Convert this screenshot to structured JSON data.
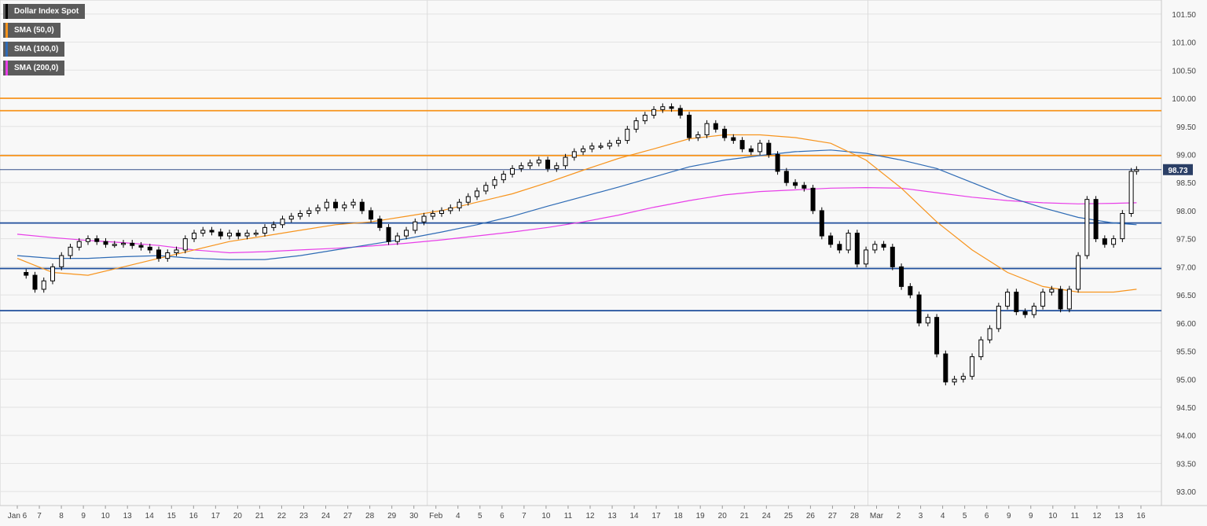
{
  "legend": [
    {
      "label": "Dollar Index Spot",
      "color": "#000000"
    },
    {
      "label": "SMA (50,0)",
      "color": "#f7941d"
    },
    {
      "label": "SMA (100,0)",
      "color": "#2e6bb5"
    },
    {
      "label": "SMA (200,0)",
      "color": "#e83ee8"
    }
  ],
  "chart_data": {
    "type": "candlestick",
    "title": "",
    "xlabel": "",
    "ylabel": "",
    "ylim": [
      92.75,
      101.75
    ],
    "y_ticks": [
      "101.50",
      "101.00",
      "100.50",
      "100.00",
      "99.50",
      "99.00",
      "98.50",
      "98.00",
      "97.50",
      "97.00",
      "96.50",
      "96.00",
      "95.50",
      "95.00",
      "94.50",
      "94.00",
      "93.50",
      "93.00"
    ],
    "x_tick_labels": [
      "Jan 6",
      "7",
      "8",
      "9",
      "10",
      "13",
      "14",
      "15",
      "16",
      "17",
      "20",
      "21",
      "22",
      "23",
      "24",
      "27",
      "28",
      "29",
      "30",
      "Feb",
      "4",
      "5",
      "6",
      "7",
      "10",
      "11",
      "12",
      "13",
      "14",
      "17",
      "18",
      "19",
      "20",
      "21",
      "24",
      "25",
      "26",
      "27",
      "28",
      "Mar",
      "2",
      "3",
      "4",
      "5",
      "6",
      "9",
      "9",
      "10",
      "11",
      "12",
      "13",
      "16"
    ],
    "last_price": "98.73",
    "last_price_color": "#2b3f66",
    "resistance_levels": [
      100.0,
      99.78,
      98.98
    ],
    "support_levels": [
      97.78,
      96.97,
      96.22
    ],
    "resistance_color": "#f7941d",
    "support_color": "#1f4e9b",
    "price_path": [
      [
        0,
        96.9
      ],
      [
        0.5,
        96.85
      ],
      [
        1,
        96.6
      ],
      [
        1.5,
        96.75
      ],
      [
        2,
        97.0
      ],
      [
        2.5,
        97.2
      ],
      [
        3,
        97.35
      ],
      [
        3.5,
        97.45
      ],
      [
        4,
        97.5
      ],
      [
        4.5,
        97.45
      ],
      [
        5,
        97.4
      ],
      [
        5.5,
        97.4
      ],
      [
        6,
        97.42
      ],
      [
        6.5,
        97.38
      ],
      [
        7,
        97.35
      ],
      [
        7.5,
        97.3
      ],
      [
        8,
        97.15
      ],
      [
        8.5,
        97.25
      ],
      [
        9,
        97.3
      ],
      [
        9.5,
        97.5
      ],
      [
        10,
        97.6
      ],
      [
        10.5,
        97.65
      ],
      [
        11,
        97.62
      ],
      [
        11.5,
        97.55
      ],
      [
        12,
        97.6
      ],
      [
        12.5,
        97.55
      ],
      [
        13,
        97.6
      ],
      [
        13.5,
        97.6
      ],
      [
        14,
        97.7
      ],
      [
        14.5,
        97.75
      ],
      [
        15,
        97.85
      ],
      [
        15.5,
        97.9
      ],
      [
        16,
        97.95
      ],
      [
        16.5,
        98.0
      ],
      [
        17,
        98.05
      ],
      [
        17.5,
        98.15
      ],
      [
        18,
        98.05
      ],
      [
        18.5,
        98.1
      ],
      [
        19,
        98.15
      ],
      [
        19.5,
        98.0
      ],
      [
        20,
        97.85
      ],
      [
        20.5,
        97.7
      ],
      [
        21,
        97.45
      ],
      [
        21.5,
        97.55
      ],
      [
        22,
        97.65
      ],
      [
        22.5,
        97.8
      ],
      [
        23,
        97.9
      ],
      [
        23.5,
        97.95
      ],
      [
        24,
        98.0
      ],
      [
        24.5,
        98.05
      ],
      [
        25,
        98.15
      ],
      [
        25.5,
        98.25
      ],
      [
        26,
        98.35
      ],
      [
        26.5,
        98.45
      ],
      [
        27,
        98.55
      ],
      [
        27.5,
        98.65
      ],
      [
        28,
        98.75
      ],
      [
        28.5,
        98.8
      ],
      [
        29,
        98.85
      ],
      [
        29.5,
        98.9
      ],
      [
        30,
        98.75
      ],
      [
        30.5,
        98.8
      ],
      [
        31,
        98.95
      ],
      [
        31.5,
        99.05
      ],
      [
        32,
        99.1
      ],
      [
        32.5,
        99.15
      ],
      [
        33,
        99.15
      ],
      [
        33.5,
        99.2
      ],
      [
        34,
        99.25
      ],
      [
        34.5,
        99.45
      ],
      [
        35,
        99.6
      ],
      [
        35.5,
        99.7
      ],
      [
        36,
        99.8
      ],
      [
        36.5,
        99.85
      ],
      [
        37,
        99.82
      ],
      [
        37.5,
        99.7
      ],
      [
        38,
        99.3
      ],
      [
        38.5,
        99.35
      ],
      [
        39,
        99.55
      ],
      [
        39.5,
        99.45
      ],
      [
        40,
        99.3
      ],
      [
        40.5,
        99.25
      ],
      [
        41,
        99.1
      ],
      [
        41.5,
        99.05
      ],
      [
        42,
        99.2
      ],
      [
        42.5,
        99.0
      ],
      [
        43,
        98.7
      ],
      [
        43.5,
        98.5
      ],
      [
        44,
        98.45
      ],
      [
        44.5,
        98.4
      ],
      [
        45,
        98.0
      ],
      [
        45.5,
        97.55
      ],
      [
        46,
        97.4
      ],
      [
        46.5,
        97.3
      ],
      [
        47,
        97.6
      ],
      [
        47.5,
        97.05
      ],
      [
        48,
        97.3
      ],
      [
        48.5,
        97.4
      ],
      [
        49,
        97.35
      ],
      [
        49.5,
        97.0
      ],
      [
        50,
        96.65
      ],
      [
        50.5,
        96.5
      ],
      [
        51,
        96.0
      ],
      [
        51.5,
        96.1
      ],
      [
        52,
        95.45
      ],
      [
        52.5,
        94.95
      ],
      [
        53,
        95.0
      ],
      [
        53.5,
        95.05
      ],
      [
        54,
        95.4
      ],
      [
        54.5,
        95.7
      ],
      [
        55,
        95.9
      ],
      [
        55.5,
        96.3
      ],
      [
        56,
        96.55
      ],
      [
        56.5,
        96.2
      ],
      [
        57,
        96.15
      ],
      [
        57.5,
        96.3
      ],
      [
        58,
        96.55
      ],
      [
        58.5,
        96.6
      ],
      [
        59,
        96.25
      ],
      [
        59.5,
        96.6
      ],
      [
        60,
        97.2
      ],
      [
        60.5,
        98.2
      ],
      [
        61,
        97.5
      ],
      [
        61.5,
        97.4
      ],
      [
        62,
        97.5
      ],
      [
        62.5,
        97.95
      ],
      [
        63,
        98.7
      ],
      [
        63.3,
        98.73
      ]
    ],
    "sma50": [
      [
        0,
        97.15
      ],
      [
        2,
        96.9
      ],
      [
        4,
        96.85
      ],
      [
        6,
        97.0
      ],
      [
        8,
        97.15
      ],
      [
        10,
        97.3
      ],
      [
        12,
        97.45
      ],
      [
        14,
        97.55
      ],
      [
        16,
        97.65
      ],
      [
        18,
        97.75
      ],
      [
        20,
        97.8
      ],
      [
        22,
        97.9
      ],
      [
        24,
        98.0
      ],
      [
        26,
        98.15
      ],
      [
        28,
        98.3
      ],
      [
        30,
        98.5
      ],
      [
        32,
        98.72
      ],
      [
        34,
        98.93
      ],
      [
        36,
        99.1
      ],
      [
        38,
        99.28
      ],
      [
        40,
        99.35
      ],
      [
        42,
        99.35
      ],
      [
        44,
        99.3
      ],
      [
        46,
        99.2
      ],
      [
        48,
        98.9
      ],
      [
        50,
        98.4
      ],
      [
        52,
        97.8
      ],
      [
        54,
        97.3
      ],
      [
        56,
        96.9
      ],
      [
        58,
        96.65
      ],
      [
        60,
        96.55
      ],
      [
        62,
        96.55
      ],
      [
        63.3,
        96.6
      ]
    ],
    "sma100": [
      [
        0,
        97.2
      ],
      [
        2,
        97.15
      ],
      [
        4,
        97.15
      ],
      [
        6,
        97.18
      ],
      [
        8,
        97.2
      ],
      [
        10,
        97.15
      ],
      [
        12,
        97.13
      ],
      [
        14,
        97.13
      ],
      [
        16,
        97.2
      ],
      [
        18,
        97.3
      ],
      [
        20,
        97.4
      ],
      [
        22,
        97.5
      ],
      [
        24,
        97.62
      ],
      [
        26,
        97.75
      ],
      [
        28,
        97.9
      ],
      [
        30,
        98.08
      ],
      [
        32,
        98.25
      ],
      [
        34,
        98.42
      ],
      [
        36,
        98.6
      ],
      [
        38,
        98.78
      ],
      [
        40,
        98.9
      ],
      [
        42,
        98.98
      ],
      [
        44,
        99.05
      ],
      [
        46,
        99.08
      ],
      [
        48,
        99.02
      ],
      [
        50,
        98.9
      ],
      [
        52,
        98.75
      ],
      [
        54,
        98.5
      ],
      [
        56,
        98.25
      ],
      [
        58,
        98.05
      ],
      [
        60,
        97.88
      ],
      [
        62,
        97.78
      ],
      [
        63.3,
        97.75
      ]
    ],
    "sma200": [
      [
        0,
        97.58
      ],
      [
        2,
        97.52
      ],
      [
        4,
        97.47
      ],
      [
        6,
        97.43
      ],
      [
        8,
        97.38
      ],
      [
        10,
        97.3
      ],
      [
        12,
        97.25
      ],
      [
        14,
        97.27
      ],
      [
        16,
        97.3
      ],
      [
        18,
        97.33
      ],
      [
        20,
        97.37
      ],
      [
        22,
        97.42
      ],
      [
        24,
        97.48
      ],
      [
        26,
        97.55
      ],
      [
        28,
        97.62
      ],
      [
        30,
        97.7
      ],
      [
        32,
        97.8
      ],
      [
        34,
        97.92
      ],
      [
        36,
        98.06
      ],
      [
        38,
        98.18
      ],
      [
        40,
        98.28
      ],
      [
        42,
        98.34
      ],
      [
        44,
        98.37
      ],
      [
        46,
        98.4
      ],
      [
        48,
        98.41
      ],
      [
        50,
        98.4
      ],
      [
        52,
        98.32
      ],
      [
        54,
        98.24
      ],
      [
        56,
        98.18
      ],
      [
        58,
        98.14
      ],
      [
        60,
        98.12
      ],
      [
        62,
        98.13
      ],
      [
        63.3,
        98.14
      ]
    ]
  }
}
